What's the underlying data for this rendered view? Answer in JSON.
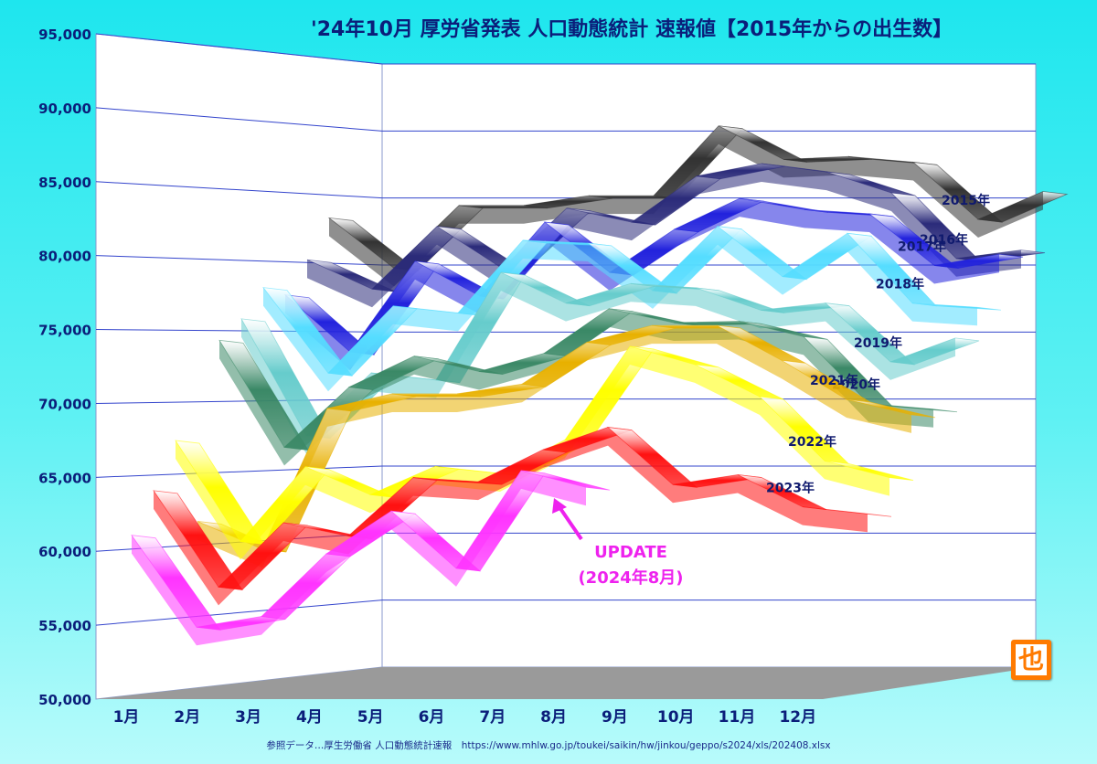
{
  "title": "'24年10月 厚労省発表 人口動態統計 速報値【2015年からの出生数】",
  "source": "参照データ…厚生労働省 人口動態統計速報　https://www.mhlw.go.jp/toukei/saikin/hw/jinkou/geppo/s2024/xls/202408.xlsx",
  "logo_text": "也",
  "annotation": {
    "line1": "UPDATE",
    "line2": "(2024年8月)",
    "color": "#ee22ee"
  },
  "chart_data": {
    "type": "line",
    "categories": [
      "1月",
      "2月",
      "3月",
      "4月",
      "5月",
      "6月",
      "7月",
      "8月",
      "9月",
      "10月",
      "11月",
      "12月"
    ],
    "ylim": [
      50000,
      95000
    ],
    "yticks": [
      50000,
      55000,
      60000,
      65000,
      70000,
      75000,
      80000,
      85000,
      90000,
      95000
    ],
    "ytick_labels": [
      "50,000",
      "55,000",
      "60,000",
      "65,000",
      "70,000",
      "75,000",
      "80,000",
      "85,000",
      "90,000",
      "95,000"
    ],
    "grid": true,
    "series": [
      {
        "name": "2015年",
        "color": "#333333",
        "values": [
          83000,
          79500,
          84000,
          84000,
          84700,
          84700,
          89700,
          87300,
          87500,
          87100,
          83000,
          85000
        ]
      },
      {
        "name": "2016年",
        "color": "#2b2b7a",
        "values": [
          80000,
          78000,
          82500,
          79500,
          83800,
          82800,
          86100,
          87000,
          86400,
          84900,
          80200,
          80800
        ]
      },
      {
        "name": "2017年",
        "color": "#2222dd",
        "values": [
          77500,
          73500,
          80000,
          77500,
          82800,
          79200,
          82300,
          84500,
          83700,
          83400,
          79700,
          80500
        ]
      },
      {
        "name": "2018年",
        "color": "#55ddff",
        "values": [
          78000,
          72000,
          76800,
          76300,
          81500,
          81300,
          77900,
          82500,
          78900,
          82000,
          77000,
          76700
        ]
      },
      {
        "name": "2019年",
        "color": "#66cccc",
        "values": [
          75800,
          67600,
          72000,
          71500,
          79200,
          77000,
          78400,
          78100,
          76500,
          77000,
          72800,
          74500
        ]
      },
      {
        "name": "2020年",
        "color": "#3a8866",
        "values": [
          74300,
          66800,
          71000,
          73200,
          72100,
          73400,
          76600,
          75600,
          75700,
          74600,
          69800,
          69400
        ]
      },
      {
        "name": "2021年",
        "color": "#e8b000",
        "values": [
          61800,
          59700,
          69500,
          70500,
          70500,
          71200,
          74200,
          75400,
          75400,
          72900,
          70100,
          69000
        ]
      },
      {
        "name": "2022年",
        "color": "#ffff00",
        "values": [
          67400,
          60300,
          65400,
          63300,
          65300,
          64800,
          67200,
          73900,
          72600,
          70300,
          65700,
          64500
        ]
      },
      {
        "name": "2023年",
        "color": "#ff1111",
        "values": [
          64000,
          57200,
          61500,
          60400,
          64500,
          64200,
          66500,
          68100,
          64000,
          64700,
          62400,
          61900
        ]
      },
      {
        "name": "2024年",
        "color": "#ff33ff",
        "values": [
          61000,
          54500,
          55000,
          59200,
          62100,
          58000,
          65000,
          63800,
          null,
          null,
          null,
          null
        ]
      }
    ],
    "series_labels_visible": [
      "2015年",
      "2016年",
      "2017年",
      "2018年",
      "2019年",
      "2020年",
      "2021年",
      "2022年",
      "2023年"
    ]
  }
}
